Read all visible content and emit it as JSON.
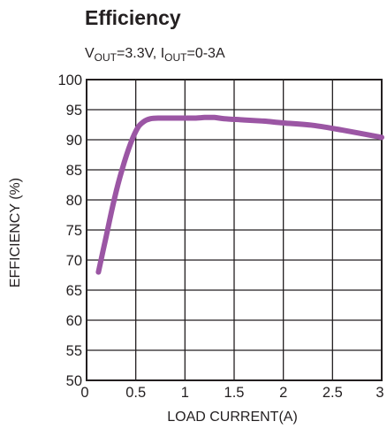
{
  "chart_data": {
    "type": "line",
    "title": "Efficiency",
    "subtitle": {
      "parts": [
        {
          "text": "V",
          "sub": false
        },
        {
          "text": "OUT",
          "sub": true
        },
        {
          "text": "=3.3V, I",
          "sub": false
        },
        {
          "text": "OUT",
          "sub": true
        },
        {
          "text": "=0-3A",
          "sub": false
        }
      ]
    },
    "xlabel": "LOAD CURRENT(A)",
    "ylabel": "EFFICIENCY (%)",
    "xlim": [
      0,
      3
    ],
    "ylim": [
      50,
      100
    ],
    "xticks": [
      0,
      0.5,
      1,
      1.5,
      2,
      2.5,
      3
    ],
    "xtick_labels": [
      "0",
      "0.5",
      "1",
      "1.5",
      "2",
      "2.5",
      "3"
    ],
    "yticks": [
      50,
      55,
      60,
      65,
      70,
      75,
      80,
      85,
      90,
      95,
      100
    ],
    "ytick_labels": [
      "50",
      "55",
      "60",
      "65",
      "70",
      "75",
      "80",
      "85",
      "90",
      "95",
      "100"
    ],
    "grid": true,
    "series": [
      {
        "color": "#9b56a4",
        "x": [
          0.12,
          0.2,
          0.28,
          0.36,
          0.45,
          0.52,
          0.58,
          0.65,
          0.75,
          0.9,
          1.0,
          1.1,
          1.2,
          1.3,
          1.4,
          1.6,
          1.8,
          2.0,
          2.3,
          2.6,
          3.0
        ],
        "y": [
          68,
          74,
          80,
          85,
          89.5,
          92,
          93,
          93.5,
          93.6,
          93.6,
          93.6,
          93.6,
          93.7,
          93.7,
          93.5,
          93.3,
          93.1,
          92.8,
          92.4,
          91.6,
          90.4
        ]
      }
    ]
  }
}
